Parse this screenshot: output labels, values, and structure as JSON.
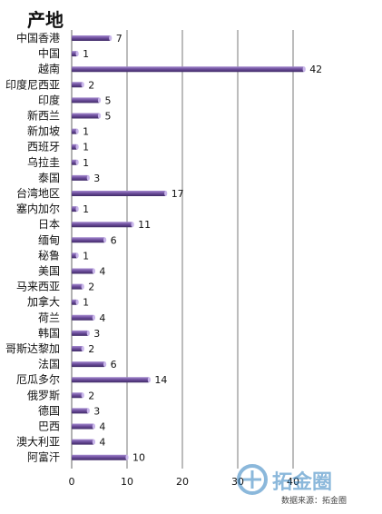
{
  "chart_data": {
    "type": "bar",
    "orientation": "horizontal",
    "title": "产地",
    "categories": [
      "中国香港",
      "中国",
      "越南",
      "印度尼西亚",
      "印度",
      "新西兰",
      "新加坡",
      "西班牙",
      "乌拉圭",
      "泰国",
      "台湾地区",
      "塞内加尔",
      "日本",
      "缅甸",
      "秘鲁",
      "美国",
      "马来西亚",
      "加拿大",
      "荷兰",
      "韩国",
      "哥斯达黎加",
      "法国",
      "厄瓜多尔",
      "俄罗斯",
      "德国",
      "巴西",
      "澳大利亚",
      "阿富汗"
    ],
    "values": [
      7,
      1,
      42,
      2,
      5,
      5,
      1,
      1,
      1,
      3,
      17,
      1,
      11,
      6,
      1,
      4,
      2,
      1,
      4,
      3,
      2,
      6,
      14,
      2,
      3,
      4,
      4,
      10
    ],
    "xticks": [
      "0",
      "10",
      "20",
      "30",
      "40"
    ],
    "xlim": [
      0,
      45
    ],
    "grid": true,
    "bar_color": "#6b4c9a"
  },
  "watermark": {
    "logo_text": "拓金圈",
    "caption": "数据来源：拓金圈"
  }
}
